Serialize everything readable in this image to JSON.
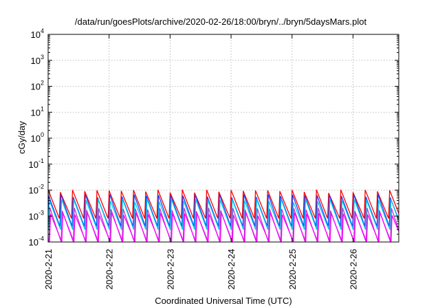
{
  "chart_data": {
    "type": "line",
    "title": "/data/run/goesPlots/archive/2020-02-26/18:00/bryn/../bryn/5daysMars.plot",
    "xlabel": "Coordinated Universal Time (UTC)",
    "ylabel": "cGy/day",
    "y_scale": "log",
    "ylim": [
      0.0001,
      10000
    ],
    "xlim": [
      "2020-02-21",
      "2020-02-26T18:00"
    ],
    "y_ticks": [
      {
        "base": "10",
        "exp": "-4"
      },
      {
        "base": "10",
        "exp": "-3"
      },
      {
        "base": "10",
        "exp": "-2"
      },
      {
        "base": "10",
        "exp": "-1"
      },
      {
        "base": "10",
        "exp": "0"
      },
      {
        "base": "10",
        "exp": "1"
      },
      {
        "base": "10",
        "exp": "2"
      },
      {
        "base": "10",
        "exp": "3"
      },
      {
        "base": "10",
        "exp": "4"
      }
    ],
    "x_ticks": [
      "2020-2-21",
      "2020-2-22",
      "2020-2-23",
      "2020-2-24",
      "2020-2-25",
      "2020-2-26"
    ],
    "grid": true,
    "series_style": "sawtooth",
    "teeth_per_day": 5,
    "series": [
      {
        "color": "#ff0000",
        "peak": 0.009,
        "trough": 0.0008
      },
      {
        "color": "#1e3cff",
        "peak": 0.006,
        "trough": 0.0004
      },
      {
        "color": "#00c8e6",
        "peak": 0.004,
        "trough": 0.0003
      },
      {
        "color": "#b040d0",
        "peak": 0.0018,
        "trough": 0.0001
      },
      {
        "color": "#ff00ff",
        "peak": 0.0012,
        "trough": 0.0001
      }
    ]
  }
}
